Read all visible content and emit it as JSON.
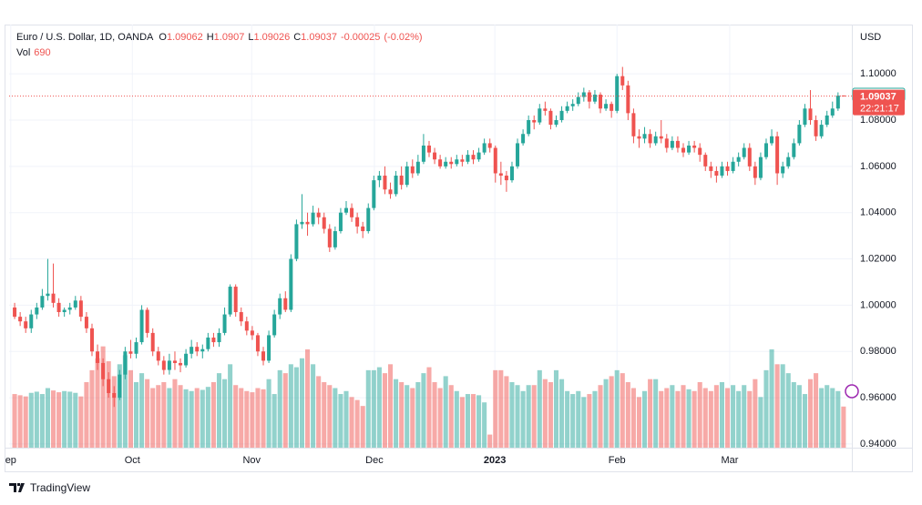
{
  "chart_data": {
    "type": "candlestick",
    "symbol": "Euro / U.S. Dollar, 1D, OANDA",
    "ohlc_prefixes": [
      "O",
      "H",
      "L",
      "C"
    ],
    "change": -0.00025,
    "change_percent": {
      "value": -0.02,
      "label": "(-0.02%)"
    },
    "volume_label": "Vol",
    "currency": "USD",
    "countdown": "22:21:17",
    "brand": "TradingView",
    "up_color": "#26a69a",
    "down_color": "#ef5350",
    "grid": true,
    "last_price_line": true,
    "ylim": [
      0.9384,
      1.1213
    ],
    "yticks": [
      {
        "value": 0.94,
        "label": "0.94000"
      },
      {
        "value": 0.96,
        "label": "0.96000"
      },
      {
        "value": 0.98,
        "label": "0.98000"
      },
      {
        "value": 1.0,
        "label": "1.00000"
      },
      {
        "value": 1.02,
        "label": "1.02000"
      },
      {
        "value": 1.04,
        "label": "1.04000"
      },
      {
        "value": 1.06,
        "label": "1.06000"
      },
      {
        "value": 1.08,
        "label": "1.08000"
      },
      {
        "value": 1.1,
        "label": "1.10000"
      }
    ],
    "xlim": [
      -1,
      151.5
    ],
    "xticks": [
      {
        "value": -0.7,
        "label": "ep"
      },
      {
        "value": 21.3,
        "label": "Oct"
      },
      {
        "value": 42.9,
        "label": "Nov"
      },
      {
        "value": 65.1,
        "label": "Dec"
      },
      {
        "value": 86.9,
        "label": "2023"
      },
      {
        "value": 109,
        "label": "Feb"
      },
      {
        "value": 129.4,
        "label": "Mar"
      }
    ],
    "volume_ylim": [
      0,
      7100
    ],
    "ohlc": [
      [
        0.999,
        1.001,
        0.994,
        0.995
      ],
      [
        0.995,
        0.997,
        0.991,
        0.993
      ],
      [
        0.993,
        0.995,
        0.988,
        0.99
      ],
      [
        0.99,
        0.998,
        0.988,
        0.996
      ],
      [
        0.996,
        1.001,
        0.994,
        0.999
      ],
      [
        0.999,
        1.007,
        0.998,
        1.004
      ],
      [
        1.004,
        1.02,
        1.002,
        1.005
      ],
      [
        1.005,
        1.018,
        0.999,
        1.001
      ],
      [
        1.001,
        1.003,
        0.995,
        0.997
      ],
      [
        0.997,
        0.999,
        0.995,
        0.998
      ],
      [
        0.998,
        1.001,
        0.996,
        0.999
      ],
      [
        0.999,
        1.004,
        0.998,
        1.002
      ],
      [
        1.002,
        1.004,
        0.993,
        0.995
      ],
      [
        0.995,
        0.997,
        0.988,
        0.99
      ],
      [
        0.99,
        0.992,
        0.978,
        0.98
      ],
      [
        0.98,
        0.983,
        0.972,
        0.975
      ],
      [
        0.975,
        0.977,
        0.965,
        0.968
      ],
      [
        0.968,
        0.971,
        0.96,
        0.962
      ],
      [
        0.962,
        0.965,
        0.956,
        0.96
      ],
      [
        0.96,
        0.972,
        0.959,
        0.97
      ],
      [
        0.97,
        0.982,
        0.968,
        0.98
      ],
      [
        0.98,
        0.985,
        0.977,
        0.979
      ],
      [
        0.979,
        0.986,
        0.977,
        0.984
      ],
      [
        0.984,
        1.0,
        0.983,
        0.998
      ],
      [
        0.998,
        0.999,
        0.986,
        0.988
      ],
      [
        0.988,
        0.99,
        0.978,
        0.98
      ],
      [
        0.98,
        0.982,
        0.974,
        0.976
      ],
      [
        0.976,
        0.978,
        0.97,
        0.972
      ],
      [
        0.972,
        0.979,
        0.97,
        0.976
      ],
      [
        0.976,
        0.98,
        0.972,
        0.975
      ],
      [
        0.975,
        0.977,
        0.971,
        0.974
      ],
      [
        0.974,
        0.981,
        0.973,
        0.979
      ],
      [
        0.979,
        0.985,
        0.977,
        0.982
      ],
      [
        0.982,
        0.984,
        0.978,
        0.98
      ],
      [
        0.98,
        0.983,
        0.977,
        0.981
      ],
      [
        0.981,
        0.988,
        0.98,
        0.986
      ],
      [
        0.986,
        0.988,
        0.982,
        0.984
      ],
      [
        0.984,
        0.99,
        0.982,
        0.988
      ],
      [
        0.988,
        0.999,
        0.987,
        0.996
      ],
      [
        0.996,
        1.009,
        0.995,
        1.008
      ],
      [
        1.008,
        1.009,
        0.995,
        0.997
      ],
      [
        0.997,
        0.999,
        0.991,
        0.993
      ],
      [
        0.993,
        0.995,
        0.987,
        0.989
      ],
      [
        0.989,
        0.991,
        0.985,
        0.987
      ],
      [
        0.987,
        0.988,
        0.978,
        0.98
      ],
      [
        0.98,
        0.982,
        0.974,
        0.976
      ],
      [
        0.976,
        0.989,
        0.975,
        0.987
      ],
      [
        0.987,
        0.998,
        0.986,
        0.996
      ],
      [
        0.996,
        1.005,
        0.994,
        1.003
      ],
      [
        1.003,
        1.006,
        0.997,
        0.998
      ],
      [
        0.998,
        1.022,
        0.997,
        1.02
      ],
      [
        1.02,
        1.037,
        1.019,
        1.035
      ],
      [
        1.035,
        1.048,
        1.033,
        1.036
      ],
      [
        1.036,
        1.04,
        1.03,
        1.035
      ],
      [
        1.035,
        1.043,
        1.034,
        1.04
      ],
      [
        1.04,
        1.042,
        1.035,
        1.038
      ],
      [
        1.038,
        1.04,
        1.031,
        1.033
      ],
      [
        1.033,
        1.035,
        1.023,
        1.025
      ],
      [
        1.025,
        1.034,
        1.024,
        1.032
      ],
      [
        1.032,
        1.042,
        1.031,
        1.04
      ],
      [
        1.04,
        1.045,
        1.039,
        1.042
      ],
      [
        1.042,
        1.044,
        1.036,
        1.038
      ],
      [
        1.038,
        1.04,
        1.031,
        1.034
      ],
      [
        1.034,
        1.036,
        1.029,
        1.032
      ],
      [
        1.032,
        1.044,
        1.031,
        1.042
      ],
      [
        1.042,
        1.056,
        1.041,
        1.054
      ],
      [
        1.054,
        1.058,
        1.051,
        1.056
      ],
      [
        1.056,
        1.06,
        1.048,
        1.05
      ],
      [
        1.05,
        1.053,
        1.046,
        1.048
      ],
      [
        1.048,
        1.058,
        1.047,
        1.056
      ],
      [
        1.056,
        1.06,
        1.05,
        1.052
      ],
      [
        1.052,
        1.062,
        1.051,
        1.06
      ],
      [
        1.06,
        1.063,
        1.055,
        1.057
      ],
      [
        1.057,
        1.065,
        1.056,
        1.062
      ],
      [
        1.062,
        1.074,
        1.061,
        1.069
      ],
      [
        1.069,
        1.071,
        1.064,
        1.066
      ],
      [
        1.066,
        1.068,
        1.061,
        1.063
      ],
      [
        1.063,
        1.065,
        1.059,
        1.06
      ],
      [
        1.06,
        1.064,
        1.059,
        1.062
      ],
      [
        1.062,
        1.064,
        1.059,
        1.061
      ],
      [
        1.061,
        1.065,
        1.06,
        1.063
      ],
      [
        1.063,
        1.065,
        1.06,
        1.062
      ],
      [
        1.062,
        1.067,
        1.061,
        1.065
      ],
      [
        1.065,
        1.067,
        1.061,
        1.063
      ],
      [
        1.063,
        1.068,
        1.062,
        1.066
      ],
      [
        1.066,
        1.072,
        1.065,
        1.07
      ],
      [
        1.07,
        1.072,
        1.066,
        1.068
      ],
      [
        1.068,
        1.069,
        1.053,
        1.057
      ],
      [
        1.057,
        1.062,
        1.052,
        1.056
      ],
      [
        1.056,
        1.058,
        1.049,
        1.054
      ],
      [
        1.054,
        1.062,
        1.053,
        1.06
      ],
      [
        1.06,
        1.072,
        1.059,
        1.07
      ],
      [
        1.07,
        1.076,
        1.069,
        1.074
      ],
      [
        1.074,
        1.082,
        1.073,
        1.08
      ],
      [
        1.08,
        1.082,
        1.076,
        1.079
      ],
      [
        1.079,
        1.087,
        1.078,
        1.085
      ],
      [
        1.085,
        1.088,
        1.082,
        1.084
      ],
      [
        1.084,
        1.085,
        1.076,
        1.078
      ],
      [
        1.078,
        1.082,
        1.077,
        1.08
      ],
      [
        1.08,
        1.086,
        1.079,
        1.084
      ],
      [
        1.084,
        1.088,
        1.083,
        1.086
      ],
      [
        1.086,
        1.089,
        1.084,
        1.087
      ],
      [
        1.087,
        1.092,
        1.086,
        1.09
      ],
      [
        1.09,
        1.094,
        1.088,
        1.092
      ],
      [
        1.092,
        1.093,
        1.085,
        1.088
      ],
      [
        1.088,
        1.093,
        1.087,
        1.091
      ],
      [
        1.091,
        1.092,
        1.083,
        1.085
      ],
      [
        1.085,
        1.089,
        1.084,
        1.087
      ],
      [
        1.087,
        1.088,
        1.081,
        1.084
      ],
      [
        1.084,
        1.1,
        1.083,
        1.099
      ],
      [
        1.099,
        1.103,
        1.093,
        1.095
      ],
      [
        1.095,
        1.097,
        1.08,
        1.083
      ],
      [
        1.083,
        1.085,
        1.07,
        1.073
      ],
      [
        1.073,
        1.076,
        1.068,
        1.072
      ],
      [
        1.072,
        1.077,
        1.07,
        1.074
      ],
      [
        1.074,
        1.076,
        1.068,
        1.07
      ],
      [
        1.07,
        1.075,
        1.069,
        1.073
      ],
      [
        1.073,
        1.08,
        1.07,
        1.072
      ],
      [
        1.072,
        1.074,
        1.066,
        1.068
      ],
      [
        1.068,
        1.073,
        1.067,
        1.071
      ],
      [
        1.071,
        1.073,
        1.066,
        1.068
      ],
      [
        1.068,
        1.07,
        1.064,
        1.066
      ],
      [
        1.066,
        1.071,
        1.065,
        1.069
      ],
      [
        1.069,
        1.071,
        1.066,
        1.068
      ],
      [
        1.068,
        1.07,
        1.062,
        1.065
      ],
      [
        1.065,
        1.066,
        1.058,
        1.06
      ],
      [
        1.06,
        1.062,
        1.055,
        1.058
      ],
      [
        1.058,
        1.06,
        1.053,
        1.056
      ],
      [
        1.056,
        1.062,
        1.055,
        1.06
      ],
      [
        1.06,
        1.062,
        1.056,
        1.058
      ],
      [
        1.058,
        1.064,
        1.057,
        1.062
      ],
      [
        1.062,
        1.066,
        1.06,
        1.064
      ],
      [
        1.064,
        1.07,
        1.063,
        1.068
      ],
      [
        1.068,
        1.07,
        1.058,
        1.06
      ],
      [
        1.06,
        1.062,
        1.052,
        1.055
      ],
      [
        1.055,
        1.066,
        1.054,
        1.064
      ],
      [
        1.064,
        1.072,
        1.063,
        1.07
      ],
      [
        1.07,
        1.076,
        1.069,
        1.073
      ],
      [
        1.073,
        1.075,
        1.052,
        1.057
      ],
      [
        1.057,
        1.062,
        1.055,
        1.06
      ],
      [
        1.06,
        1.066,
        1.059,
        1.064
      ],
      [
        1.064,
        1.072,
        1.063,
        1.07
      ],
      [
        1.07,
        1.08,
        1.069,
        1.078
      ],
      [
        1.078,
        1.087,
        1.077,
        1.085
      ],
      [
        1.085,
        1.093,
        1.078,
        1.08
      ],
      [
        1.08,
        1.082,
        1.071,
        1.073
      ],
      [
        1.073,
        1.08,
        1.072,
        1.078
      ],
      [
        1.078,
        1.084,
        1.077,
        1.082
      ],
      [
        1.082,
        1.088,
        1.081,
        1.085
      ],
      [
        1.085,
        1.092,
        1.084,
        1.0906
      ],
      [
        1.09062,
        1.0907,
        1.09026,
        1.09037
      ]
    ],
    "volume": [
      900,
      880,
      860,
      920,
      940,
      900,
      1000,
      960,
      930,
      950,
      940,
      920,
      860,
      1100,
      1300,
      1500,
      1700,
      1450,
      1200,
      1400,
      1550,
      1300,
      1100,
      1250,
      1150,
      1000,
      1050,
      1100,
      1000,
      1150,
      1050,
      980,
      950,
      1000,
      970,
      1020,
      1100,
      1250,
      1150,
      1400,
      1050,
      1000,
      950,
      930,
      1000,
      980,
      1150,
      900,
      1300,
      1250,
      1400,
      1350,
      1500,
      1650,
      1400,
      1200,
      1100,
      1050,
      1000,
      900,
      950,
      850,
      800,
      700,
      1300,
      1300,
      1350,
      1250,
      1400,
      1150,
      1100,
      1050,
      1000,
      1100,
      1250,
      1350,
      1100,
      1000,
      1200,
      1050,
      950,
      850,
      900,
      900,
      880,
      760,
      220,
      1300,
      1300,
      1200,
      1100,
      1050,
      950,
      1050,
      1050,
      1300,
      1150,
      1100,
      1300,
      1150,
      950,
      900,
      950,
      850,
      900,
      950,
      1050,
      1150,
      1200,
      1300,
      1250,
      1100,
      1000,
      850,
      950,
      1150,
      1150,
      950,
      1000,
      1050,
      950,
      1050,
      980,
      950,
      1100,
      1000,
      950,
      1050,
      1100,
      1000,
      1050,
      950,
      1050,
      950,
      1150,
      850,
      1300,
      1650,
      1400,
      1400,
      1250,
      1100,
      1050,
      900,
      1150,
      1250,
      1000,
      1050,
      1000,
      950,
      690
    ]
  }
}
